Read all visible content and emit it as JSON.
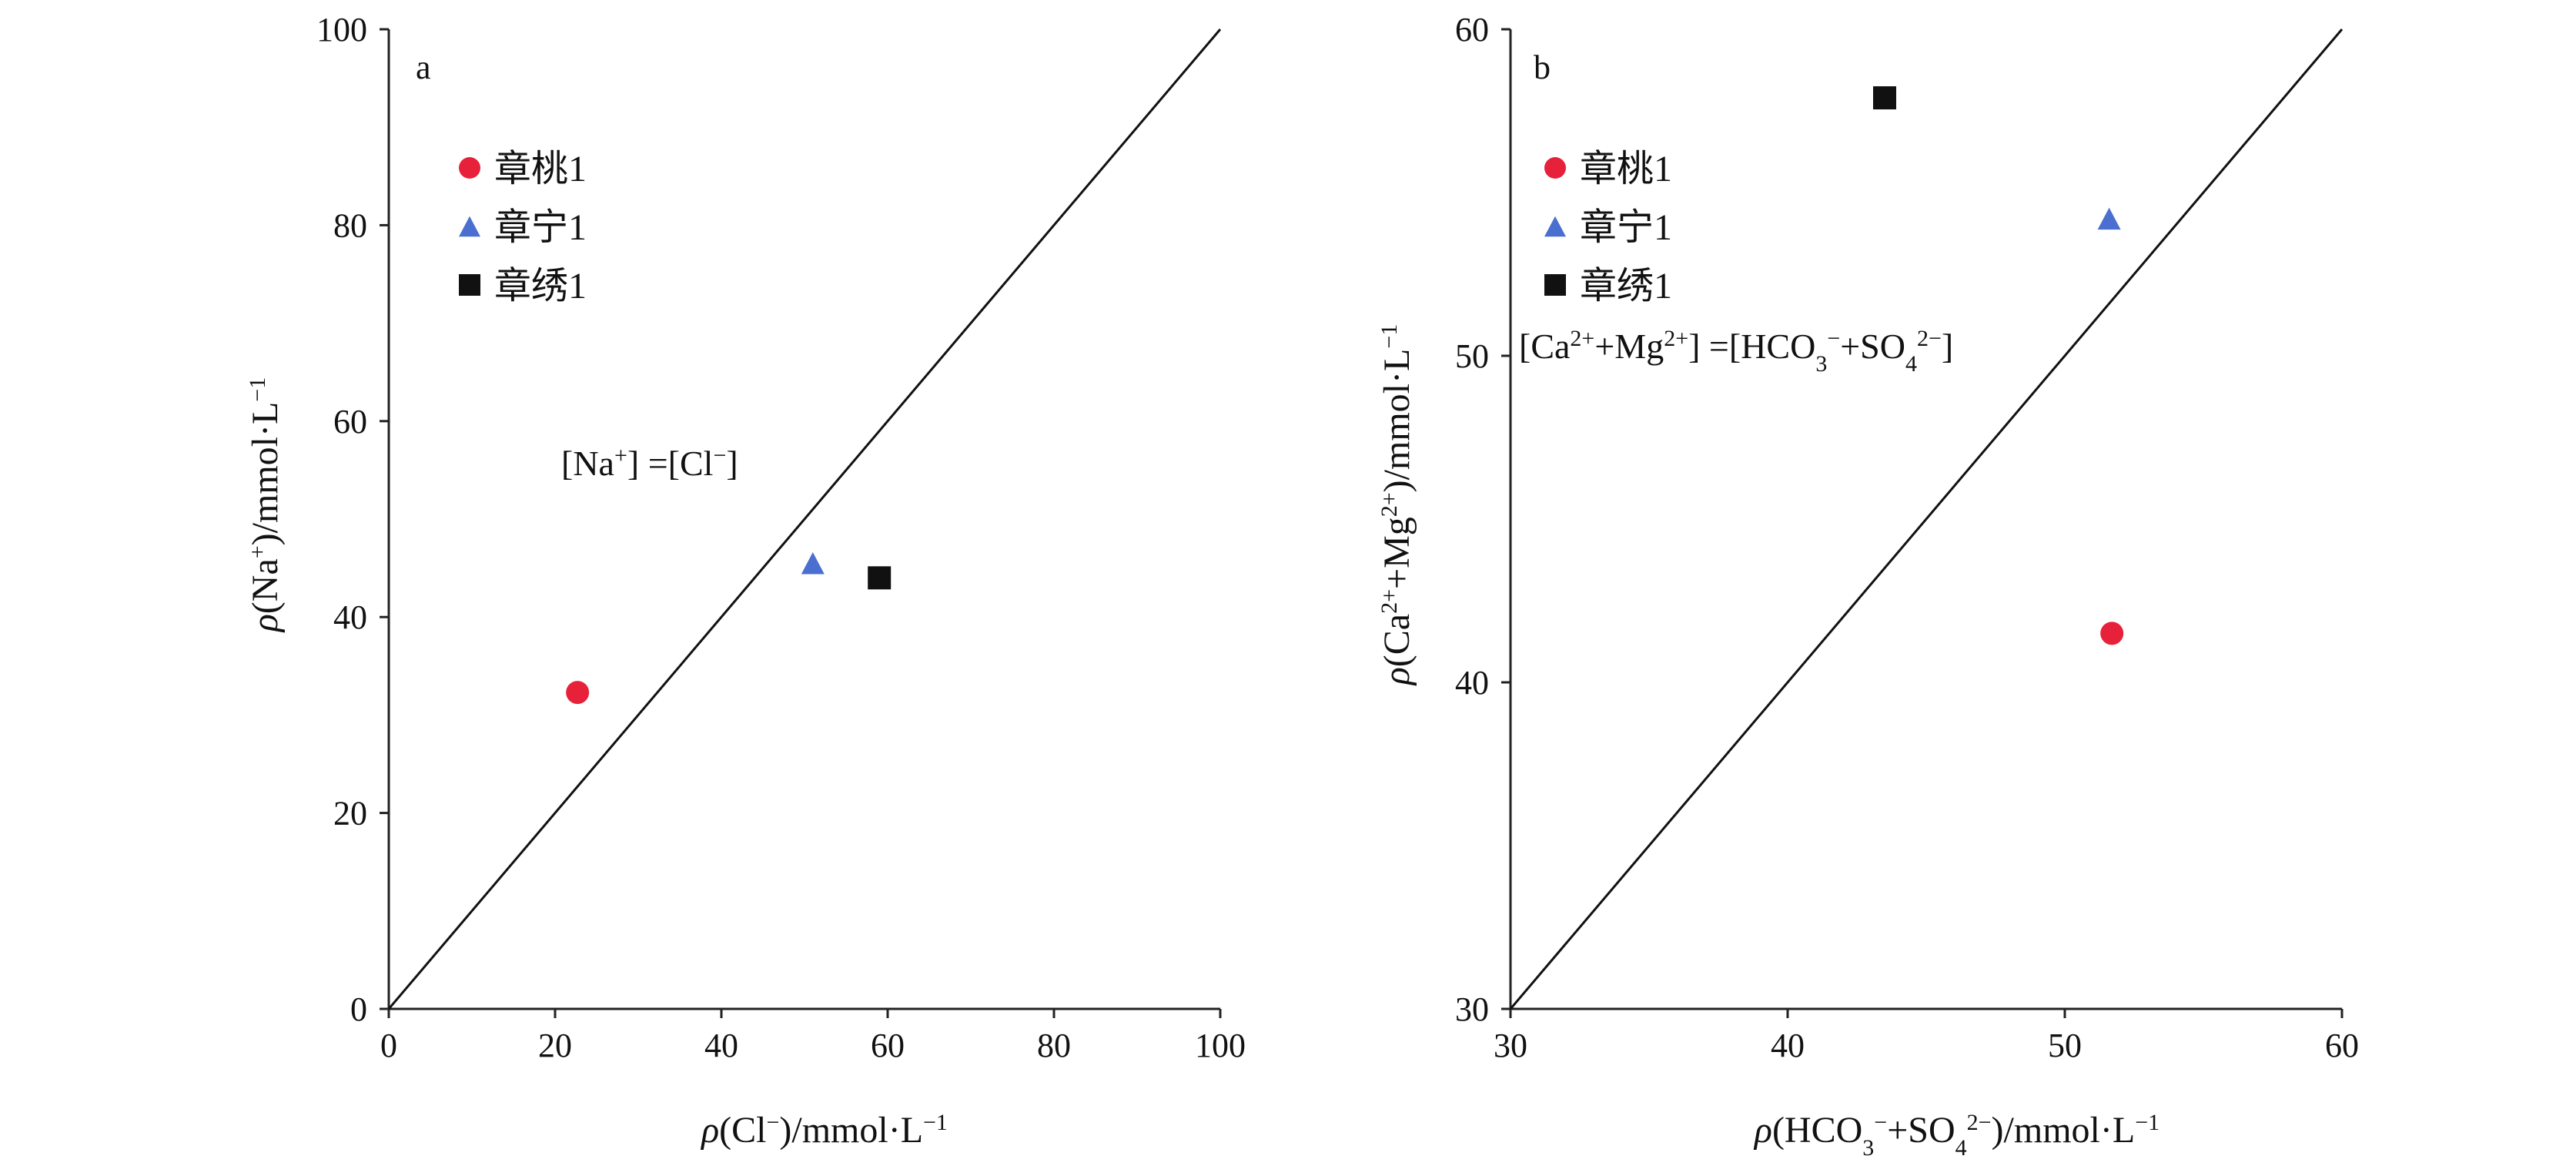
{
  "chart_data": [
    {
      "type": "scatter",
      "panel_label": "a",
      "xlabel": "ρ(Cl⁻)/mmol·L⁻¹",
      "ylabel": "ρ(Na⁺)/mmol·L⁻¹",
      "xlim": [
        0,
        100
      ],
      "ylim": [
        0,
        100
      ],
      "xticks": [
        "0",
        "20",
        "40",
        "60",
        "80",
        "100"
      ],
      "yticks": [
        "0",
        "20",
        "40",
        "60",
        "80",
        "100"
      ],
      "reference_line": {
        "from": [
          0,
          0
        ],
        "to": [
          100,
          100
        ],
        "label": "[Na⁺] =[Cl⁻]"
      },
      "legend_placement": "top-left",
      "series": [
        {
          "name": "章桃1",
          "marker": "circle",
          "color": "#e8213a",
          "x": [
            22.7
          ],
          "y": [
            32.3
          ]
        },
        {
          "name": "章宁1",
          "marker": "triangle",
          "color": "#4a6fd0",
          "x": [
            51.0
          ],
          "y": [
            45.5
          ]
        },
        {
          "name": "章绣1",
          "marker": "square",
          "color": "#111111",
          "x": [
            59.0
          ],
          "y": [
            44.0
          ]
        }
      ]
    },
    {
      "type": "scatter",
      "panel_label": "b",
      "xlabel": "ρ(HCO₃⁻+SO₄²⁻)/mmol·L⁻¹",
      "ylabel": "ρ(Ca²⁺+Mg²⁺)/mmol·L⁻¹",
      "xlim": [
        30,
        60
      ],
      "ylim": [
        30,
        60
      ],
      "xticks": [
        "30",
        "40",
        "50",
        "60"
      ],
      "yticks": [
        "30",
        "40",
        "50",
        "60"
      ],
      "reference_line": {
        "from": [
          30,
          30
        ],
        "to": [
          60,
          60
        ],
        "label": "[Ca²⁺+Mg²⁺] =[HCO₃⁻+SO₄²⁻]"
      },
      "legend_placement": "top-left",
      "series": [
        {
          "name": "章桃1",
          "marker": "circle",
          "color": "#e8213a",
          "x": [
            51.7
          ],
          "y": [
            41.5
          ]
        },
        {
          "name": "章宁1",
          "marker": "triangle",
          "color": "#4a6fd0",
          "x": [
            51.6
          ],
          "y": [
            54.2
          ]
        },
        {
          "name": "章绣1",
          "marker": "square",
          "color": "#111111",
          "x": [
            43.5
          ],
          "y": [
            57.9
          ]
        }
      ]
    }
  ]
}
